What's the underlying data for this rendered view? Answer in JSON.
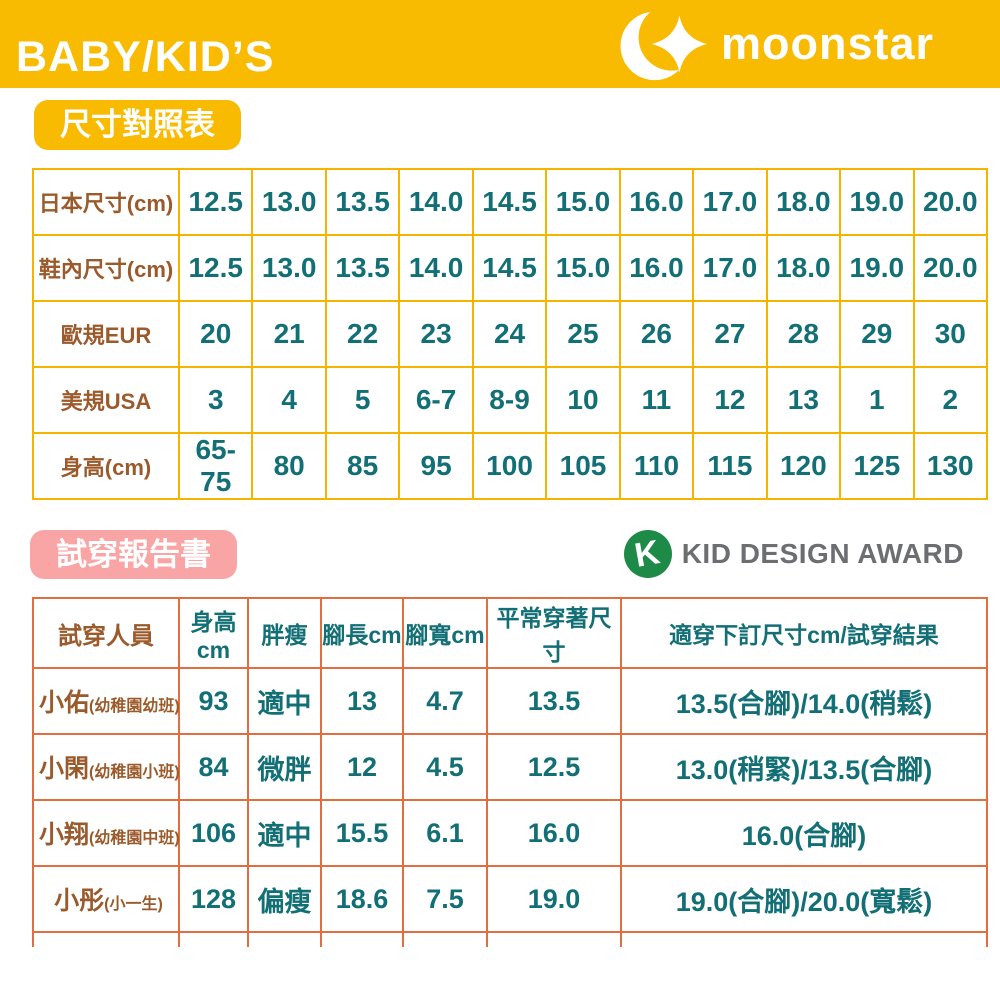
{
  "header": {
    "title": "BABY/KID’S",
    "brand": "moonstar",
    "brand_icon": "crescent-moon-and-star"
  },
  "size_section": {
    "label": "尺寸對照表",
    "table": {
      "rows": [
        {
          "label": "日本尺寸(cm)",
          "values": [
            "12.5",
            "13.0",
            "13.5",
            "14.0",
            "14.5",
            "15.0",
            "16.0",
            "17.0",
            "18.0",
            "19.0",
            "20.0"
          ]
        },
        {
          "label": "鞋內尺寸(cm)",
          "values": [
            "12.5",
            "13.0",
            "13.5",
            "14.0",
            "14.5",
            "15.0",
            "16.0",
            "17.0",
            "18.0",
            "19.0",
            "20.0"
          ]
        },
        {
          "label": "歐規EUR",
          "values": [
            "20",
            "21",
            "22",
            "23",
            "24",
            "25",
            "26",
            "27",
            "28",
            "29",
            "30"
          ]
        },
        {
          "label": "美規USA",
          "values": [
            "3",
            "4",
            "5",
            "6-7",
            "8-9",
            "10",
            "11",
            "12",
            "13",
            "1",
            "2"
          ]
        },
        {
          "label": "身高(cm)",
          "values": [
            "65-75",
            "80",
            "85",
            "95",
            "100",
            "105",
            "110",
            "115",
            "120",
            "125",
            "130"
          ]
        }
      ]
    }
  },
  "fit_section": {
    "label": "試穿報告書",
    "award": {
      "icon_letter": "K",
      "text": "KID DESIGN AWARD"
    },
    "table": {
      "headers": [
        "試穿人員",
        "身高cm",
        "胖瘦",
        "腳長cm",
        "腳寬cm",
        "平常穿著尺寸",
        "適穿下訂尺寸cm/試穿結果"
      ],
      "rows": [
        {
          "name": "小佑",
          "note": "(幼稚園幼班)",
          "height": "93",
          "build": "適中",
          "foot_length": "13",
          "foot_width": "4.7",
          "usual_size": "13.5",
          "result": "13.5(合腳)/14.0(稍鬆)"
        },
        {
          "name": "小閑",
          "note": "(幼稚園小班)",
          "height": "84",
          "build": "微胖",
          "foot_length": "12",
          "foot_width": "4.5",
          "usual_size": "12.5",
          "result": "13.0(稍緊)/13.5(合腳)"
        },
        {
          "name": "小翔",
          "note": "(幼稚園中班)",
          "height": "106",
          "build": "適中",
          "foot_length": "15.5",
          "foot_width": "6.1",
          "usual_size": "16.0",
          "result": "16.0(合腳)"
        },
        {
          "name": "小彤",
          "note": "(小一生)",
          "height": "128",
          "build": "偏瘦",
          "foot_length": "18.6",
          "foot_width": "7.5",
          "usual_size": "19.0",
          "result": "19.0(合腳)/20.0(寬鬆)"
        }
      ]
    }
  },
  "colors": {
    "banner_yellow": "#F9BB01",
    "size_table_border": "#F5B400",
    "value_teal": "#136F76",
    "label_brown": "#9B5A2B",
    "fit_pink": "#F9A5A5",
    "fit_table_border": "#E06E3E",
    "award_green": "#1E8A47",
    "award_gray": "#6D6E71"
  }
}
